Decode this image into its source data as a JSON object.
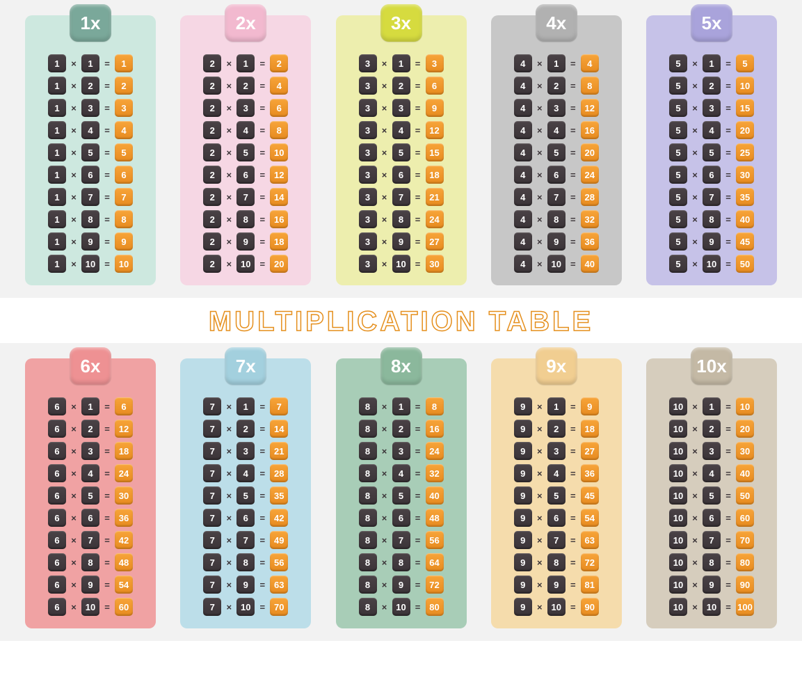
{
  "title": "MULTIPLICATION TABLE",
  "title_stroke_color": "#e58f1d",
  "background_band": "#f2f2f2",
  "dark_cell_bg": "#3b3438",
  "result_cell_bg": "#e78b1f",
  "cell_text_color": "#ffffff",
  "op_times": "×",
  "op_equals": "=",
  "tables": [
    {
      "label": "1x",
      "n": 1,
      "card_bg": "#cde8df",
      "tab_bg": "#7aa89a"
    },
    {
      "label": "2x",
      "n": 2,
      "card_bg": "#f6d7e4",
      "tab_bg": "#f2b9cf"
    },
    {
      "label": "3x",
      "n": 3,
      "card_bg": "#edeeae",
      "tab_bg": "#d6db3f"
    },
    {
      "label": "4x",
      "n": 4,
      "card_bg": "#c7c7c7",
      "tab_bg": "#b1b1b1"
    },
    {
      "label": "5x",
      "n": 5,
      "card_bg": "#c6c2e8",
      "tab_bg": "#a9a3db"
    },
    {
      "label": "6x",
      "n": 6,
      "card_bg": "#f0a2a3",
      "tab_bg": "#ee9193"
    },
    {
      "label": "7x",
      "n": 7,
      "card_bg": "#bcdee9",
      "tab_bg": "#a3d0de"
    },
    {
      "label": "8x",
      "n": 8,
      "card_bg": "#a8cdb7",
      "tab_bg": "#8bb89c"
    },
    {
      "label": "9x",
      "n": 9,
      "card_bg": "#f5dcac",
      "tab_bg": "#f1ce91"
    },
    {
      "label": "10x",
      "n": 10,
      "card_bg": "#d6cdbd",
      "tab_bg": "#c4b9a5"
    }
  ],
  "multipliers": [
    1,
    2,
    3,
    4,
    5,
    6,
    7,
    8,
    9,
    10
  ]
}
